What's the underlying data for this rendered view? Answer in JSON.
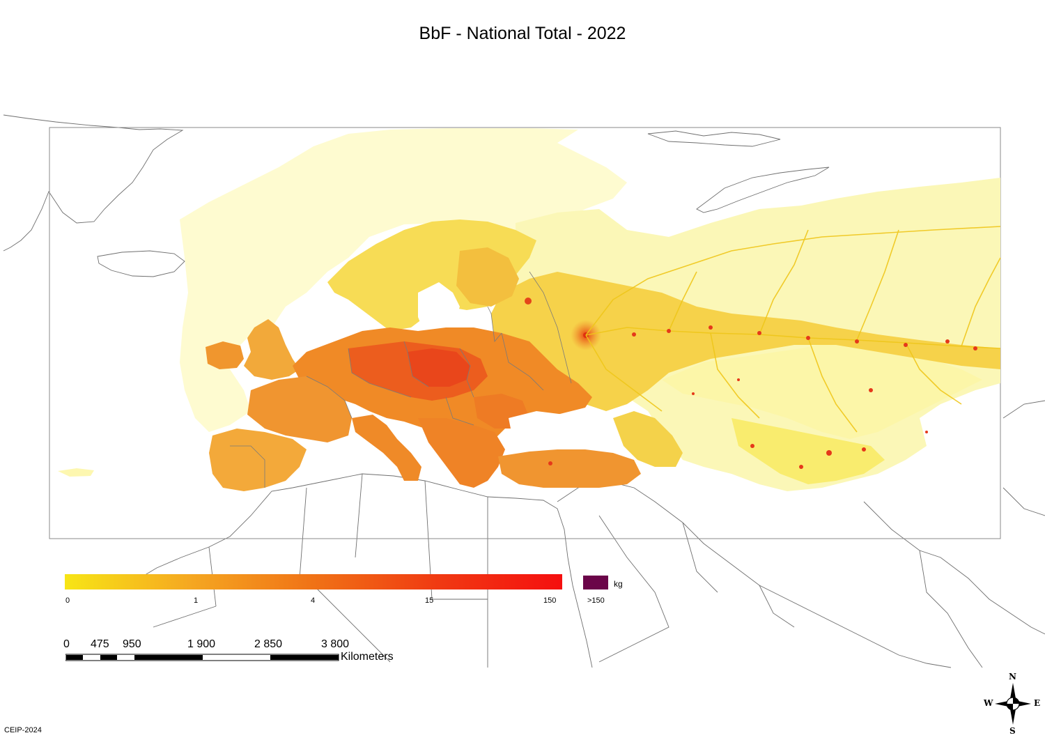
{
  "title": "BbF - National Total - 2022",
  "legend": {
    "unit": "kg",
    "ticks": [
      "0",
      "1",
      "4",
      "15",
      "150"
    ],
    "overflow_label": ">150",
    "gradient_colors": [
      "#f7e516",
      "#f5a821",
      "#f07216",
      "#f03a12",
      "#f50f0f"
    ],
    "overflow_color": "#6b0549"
  },
  "scale_bar": {
    "labels": [
      "0",
      "475",
      "950",
      "1 900",
      "2 850",
      "3 800"
    ],
    "unit": "Kilometers"
  },
  "compass": {
    "n": "N",
    "s": "S",
    "e": "E",
    "w": "W"
  },
  "credit": "CEIP-2024",
  "colors": {
    "low": "#fdfbc2",
    "light": "#f8ea6a",
    "medium": "#f3b33b",
    "high": "#ef7f22",
    "very_high": "#eb4d1b",
    "border": "#7a7a7a"
  }
}
